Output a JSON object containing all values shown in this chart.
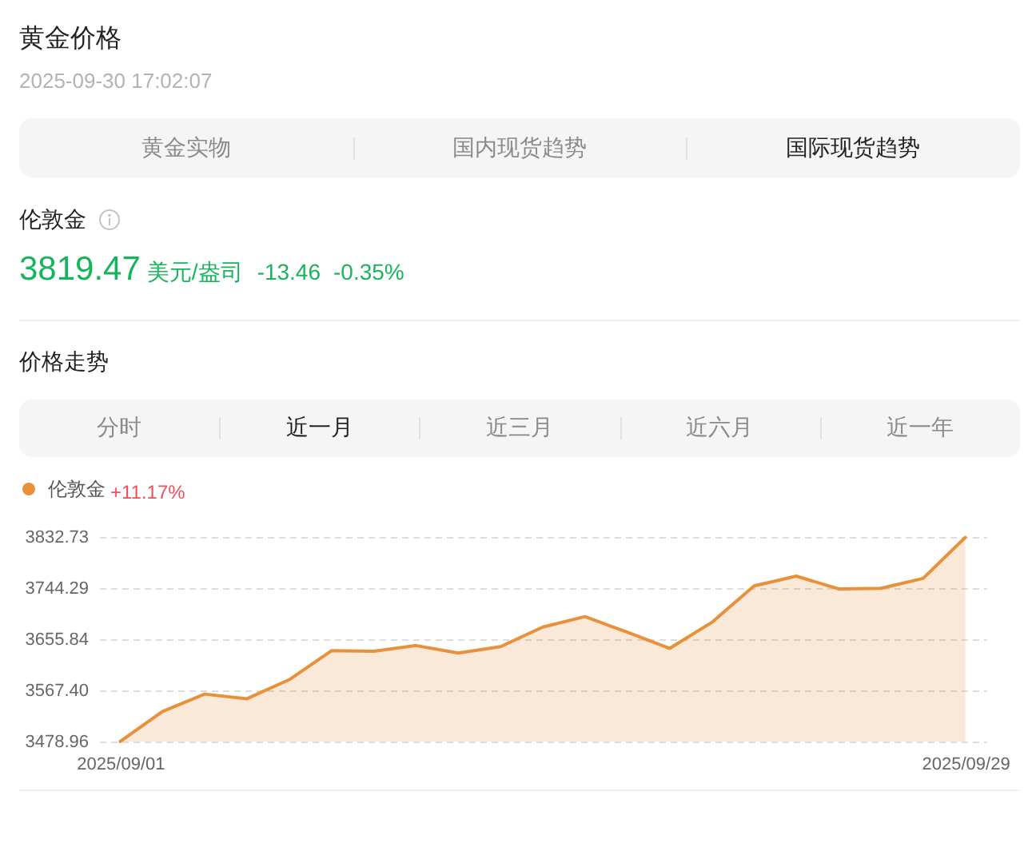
{
  "chart_data": {
    "type": "area",
    "title": "黄金价格",
    "subtitle": "2025-09-30 17:02:07",
    "categories": [
      "2025/09/01",
      null,
      null,
      null,
      null,
      null,
      null,
      null,
      null,
      null,
      null,
      null,
      null,
      null,
      null,
      null,
      null,
      null,
      null,
      null,
      "2025/09/29"
    ],
    "series": [
      {
        "name": "伦敦金",
        "color": "#e8903a",
        "values": [
          3479,
          3531,
          3561,
          3553,
          3586,
          3636,
          3635,
          3645,
          3632,
          3643,
          3677,
          3695,
          3668,
          3640,
          3685,
          3748,
          3765,
          3743,
          3744,
          3761,
          3832
        ]
      }
    ],
    "ylim": [
      3478.96,
      3832.73
    ],
    "yticks": [
      3478.96,
      {
        "value": 3567.4,
        "label": "3567.40"
      },
      3655.84,
      3744.29,
      3832.73
    ],
    "grid": "y",
    "legend": "top left",
    "marker": "none",
    "line_style": "solid",
    "annotations": [
      "黄金实物",
      "国内现货趋势",
      "国际现货趋势",
      "伦敦金",
      "3819.47",
      "美元/盎司",
      "-13.46",
      "-0.35%",
      "价格走势",
      "分时",
      "近一月",
      "近三月",
      "近六月",
      "近一年",
      "+11.17%"
    ]
  }
}
